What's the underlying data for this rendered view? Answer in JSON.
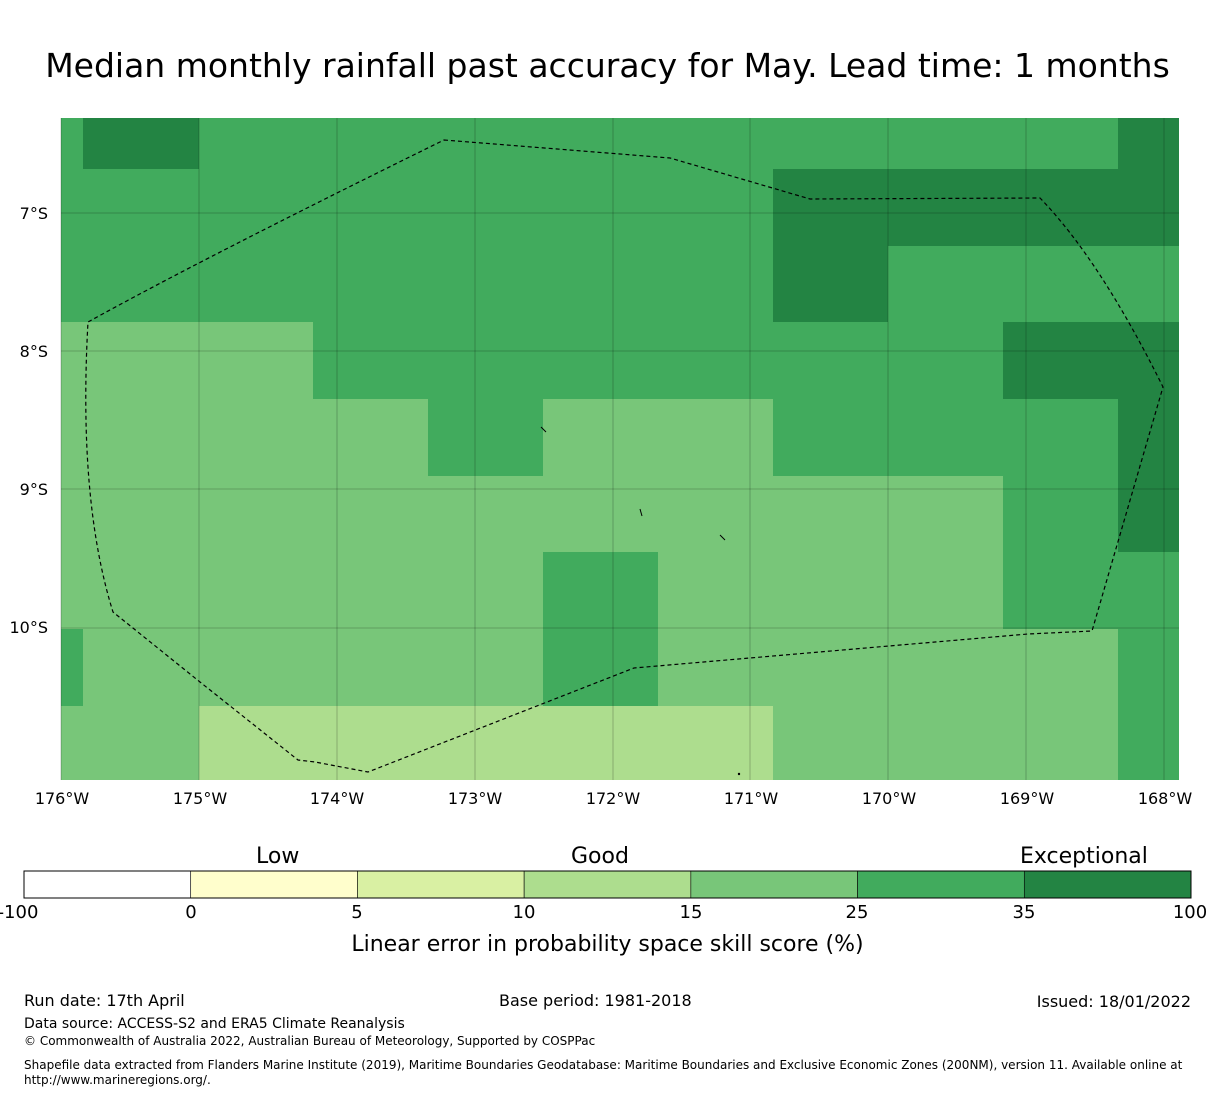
{
  "title": "Median monthly rainfall past accuracy for May. Lead time: 1 months",
  "map": {
    "lat_labels": [
      "7°S",
      "8°S",
      "9°S",
      "10°S"
    ],
    "lon_labels": [
      "176°W",
      "175°W",
      "174°W",
      "173°W",
      "172°W",
      "171°W",
      "170°W",
      "169°W",
      "168°W"
    ],
    "colors": {
      "white": "#ffffff",
      "pale_yellow": "#fffecc",
      "yellow_green": "#d9f0a3",
      "light_green": "#addd8e",
      "mid_green": "#78c679",
      "green": "#41ab5d",
      "dark_green": "#238443"
    }
  },
  "colorbar": {
    "categories": [
      "Low",
      "Good",
      "Exceptional"
    ],
    "ticks": [
      "-100",
      "0",
      "5",
      "10",
      "15",
      "25",
      "35",
      "100"
    ],
    "colors": [
      "#ffffff",
      "#fffecc",
      "#d9f0a3",
      "#addd8e",
      "#78c679",
      "#41ab5d",
      "#238443"
    ],
    "label": "Linear error in probability space skill score (%)"
  },
  "footer": {
    "run_date": "Run date: 17th April",
    "base_period": "Base period: 1981-2018",
    "issued": "Issued: 18/01/2022",
    "data_source": "Data source: ACCESS-S2 and ERA5 Climate Reanalysis",
    "copyright": "© Commonwealth of Australia 2022, Australian Bureau of Meteorology, Supported by COSPPac",
    "shapefile_line1": "Shapefile data extracted from Flanders Marine Institute (2019), Maritime Boundaries Geodatabase: Maritime Boundaries and Exclusive Economic Zones (200NM), version 11. Available online at",
    "shapefile_line2": "http://www.marineregions.org/."
  }
}
